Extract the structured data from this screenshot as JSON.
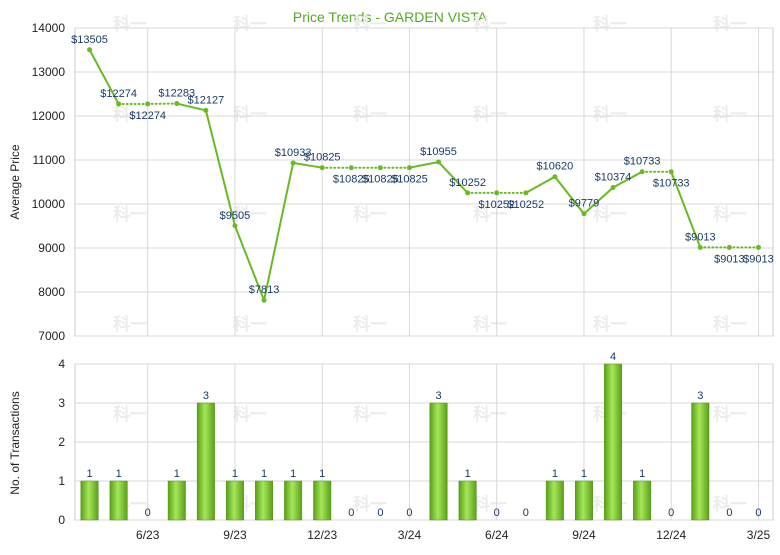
{
  "chart_data": [
    {
      "type": "line",
      "title": "Price Trends - GARDEN VISTA",
      "ylabel": "Average Price",
      "ylim": [
        7000,
        14000
      ],
      "yticks": [
        7000,
        8000,
        9000,
        10000,
        11000,
        12000,
        13000,
        14000
      ],
      "grid": true,
      "title_color": "#55aa22",
      "line_color": "#66bb22",
      "data_label_color": "#1a3a6b",
      "x": [
        1,
        2,
        3,
        4,
        5,
        6,
        7,
        8,
        9,
        10,
        11,
        12,
        13,
        14,
        15,
        16,
        17,
        18,
        19,
        20,
        21,
        22,
        23,
        24
      ],
      "values": [
        13505,
        12274,
        12274,
        12283,
        12127,
        9505,
        7813,
        10933,
        10825,
        10825,
        10825,
        10825,
        10955,
        10252,
        10252,
        10252,
        10620,
        9779,
        10374,
        10733,
        10733,
        9013,
        9013,
        9013
      ],
      "labels": [
        "$13505",
        "$12274",
        "$12274",
        "$12283",
        "$12127",
        "$9505",
        "$7813",
        "$10933",
        "$10825",
        "$10825",
        "$10825",
        "$10825",
        "$10955",
        "$10252",
        "$10252",
        "$10252",
        "$10620",
        "$9779",
        "$10374",
        "$10733",
        "$10733",
        "$9013",
        "$9013",
        "$9013"
      ],
      "dotted_segments": [
        1,
        2,
        8,
        9,
        10,
        13,
        14,
        19,
        21,
        22
      ]
    },
    {
      "type": "bar",
      "ylabel": "No. of Transactions",
      "ylim": [
        0,
        4
      ],
      "yticks": [
        0,
        1,
        2,
        3,
        4
      ],
      "grid": true,
      "bar_color": "#77cc22",
      "x": [
        1,
        2,
        3,
        4,
        5,
        6,
        7,
        8,
        9,
        10,
        11,
        12,
        13,
        14,
        15,
        16,
        17,
        18,
        19,
        20,
        21,
        22,
        23,
        24
      ],
      "values": [
        1,
        1,
        0,
        1,
        3,
        1,
        1,
        1,
        1,
        0,
        0,
        0,
        3,
        1,
        0,
        0,
        1,
        1,
        4,
        1,
        0,
        3,
        0,
        0
      ],
      "x_ticks": [
        {
          "x": 3,
          "label": "6/23"
        },
        {
          "x": 6,
          "label": "9/23"
        },
        {
          "x": 9,
          "label": "12/23"
        },
        {
          "x": 12,
          "label": "3/24"
        },
        {
          "x": 15,
          "label": "6/24"
        },
        {
          "x": 18,
          "label": "9/24"
        },
        {
          "x": 21,
          "label": "12/24"
        },
        {
          "x": 24,
          "label": "3/25"
        }
      ]
    }
  ],
  "watermark": "科一"
}
